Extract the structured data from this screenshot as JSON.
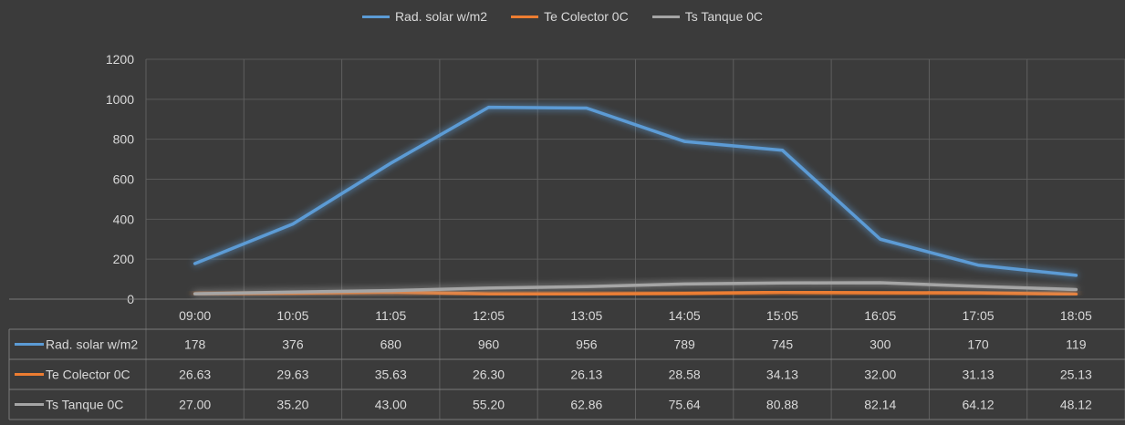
{
  "chart_data": {
    "type": "line",
    "categories": [
      "09:00",
      "10:05",
      "11:05",
      "12:05",
      "13:05",
      "14:05",
      "15:05",
      "16:05",
      "17:05",
      "18:05"
    ],
    "series": [
      {
        "name": "Rad. solar w/m2",
        "color": "#5b9bd5",
        "values": [
          178,
          376,
          680,
          960,
          956,
          789,
          745,
          300,
          170,
          119
        ],
        "labels": [
          "178",
          "376",
          "680",
          "960",
          "956",
          "789",
          "745",
          "300",
          "170",
          "119"
        ]
      },
      {
        "name": "Te Colector 0C",
        "color": "#ed7d31",
        "values": [
          26.63,
          29.63,
          35.63,
          26.3,
          26.13,
          28.58,
          34.13,
          32.0,
          31.13,
          25.13
        ],
        "labels": [
          "26.63",
          "29.63",
          "35.63",
          "26.30",
          "26.13",
          "28.58",
          "34.13",
          "32.00",
          "31.13",
          "25.13"
        ]
      },
      {
        "name": "Ts Tanque 0C",
        "color": "#a5a5a5",
        "values": [
          27.0,
          35.2,
          43.0,
          55.2,
          62.86,
          75.64,
          80.88,
          82.14,
          64.12,
          48.12
        ],
        "labels": [
          "27.00",
          "35.20",
          "43.00",
          "55.20",
          "62.86",
          "75.64",
          "80.88",
          "82.14",
          "64.12",
          "48.12"
        ]
      }
    ],
    "yticks": [
      "0",
      "200",
      "400",
      "600",
      "800",
      "1000",
      "1200"
    ],
    "ylim": [
      0,
      1200
    ],
    "grid": true,
    "legend": "top-center",
    "data_table": true
  }
}
